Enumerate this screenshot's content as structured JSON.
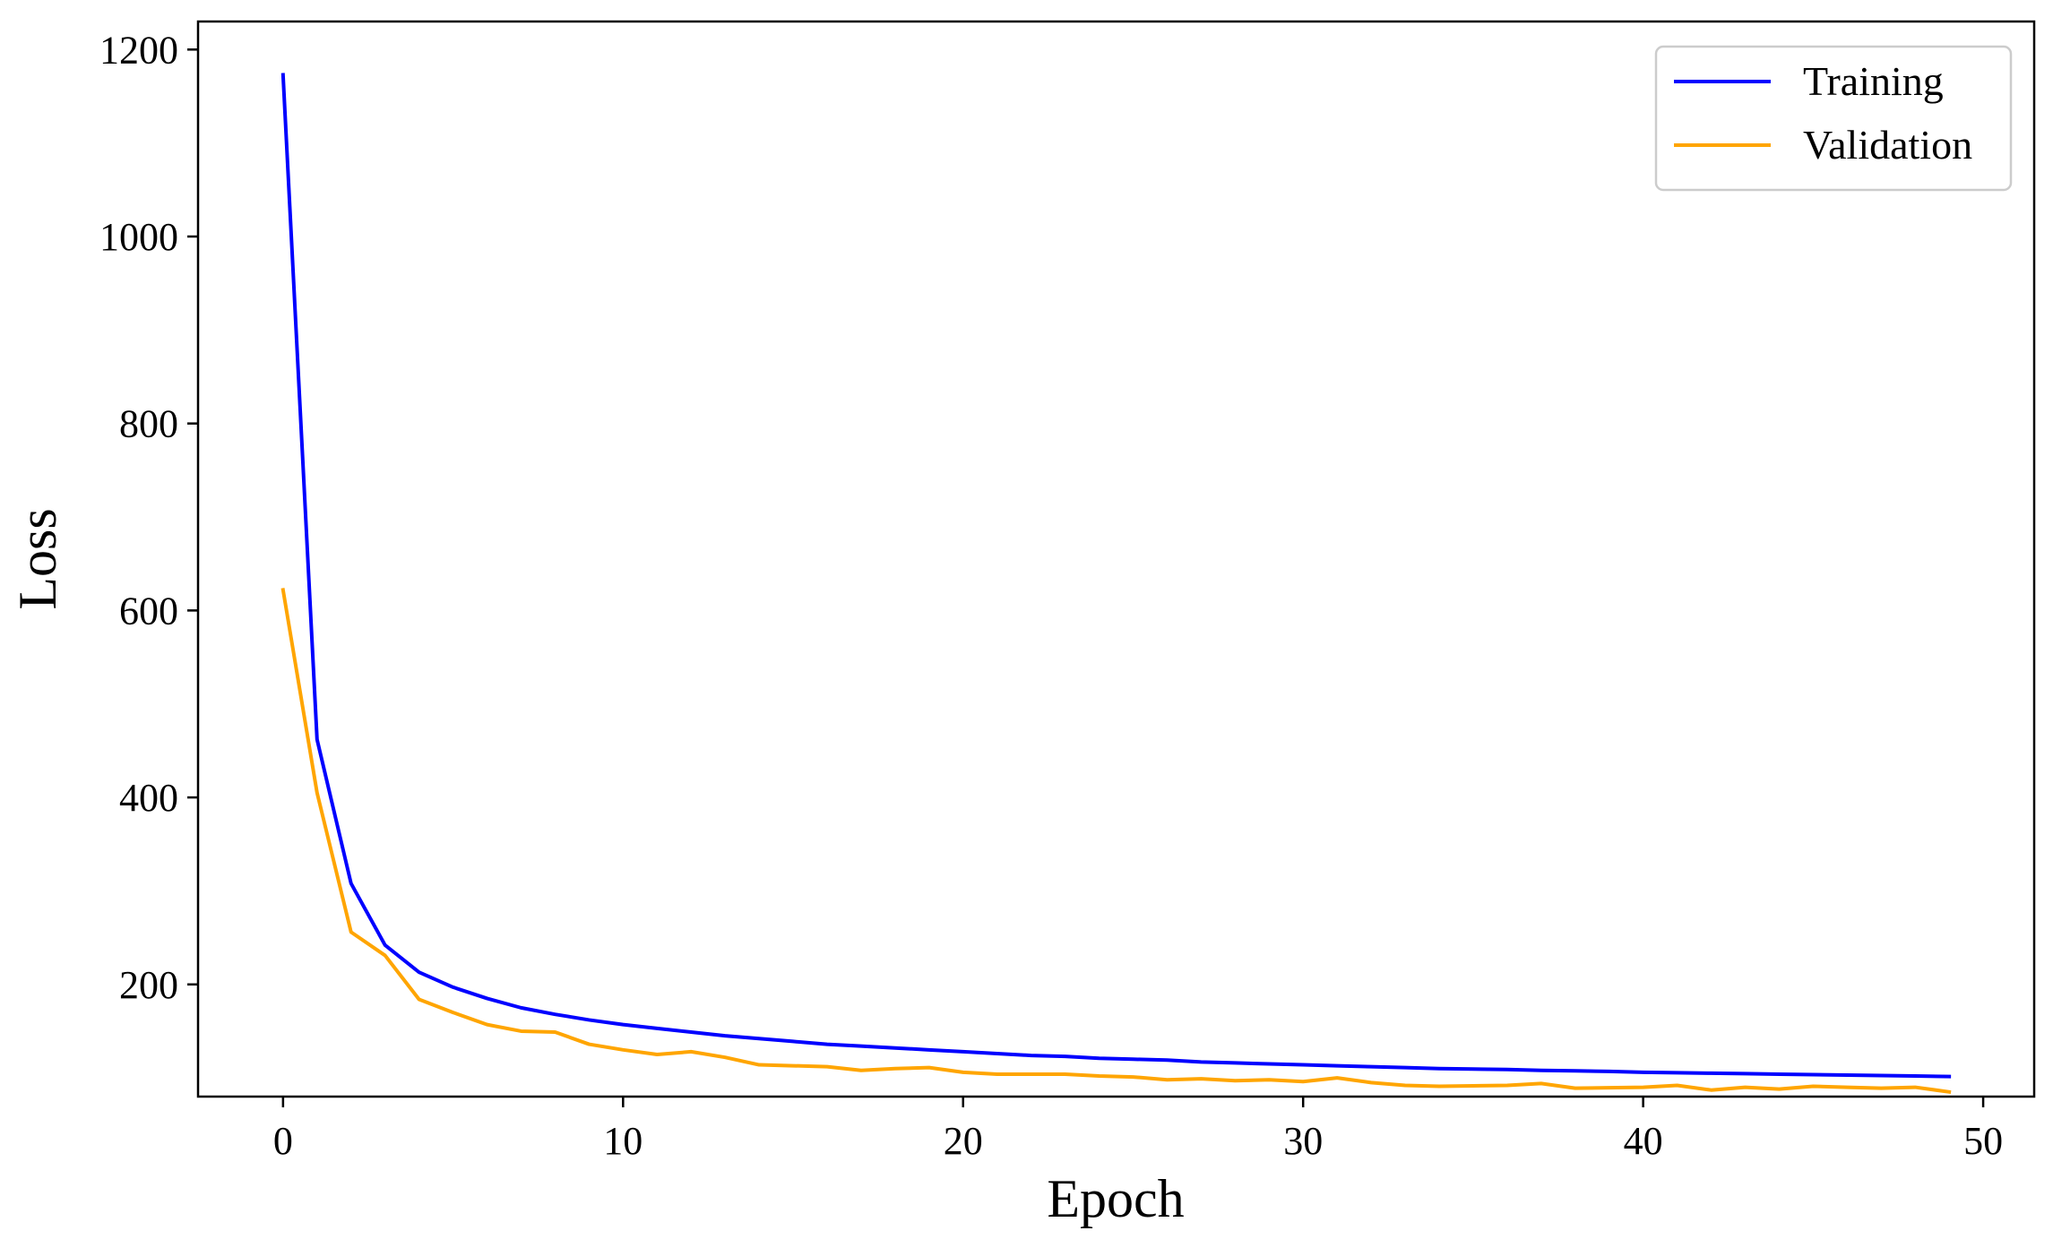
{
  "chart_data": {
    "type": "line",
    "title": "",
    "xlabel": "Epoch",
    "ylabel": "Loss",
    "xlim": [
      -2.5,
      51.5
    ],
    "ylim": [
      80,
      1230
    ],
    "xticks": [
      0,
      10,
      20,
      30,
      40,
      50
    ],
    "yticks": [
      200,
      400,
      600,
      800,
      1000,
      1200
    ],
    "xtick_labels": [
      "0",
      "10",
      "20",
      "30",
      "40",
      "50"
    ],
    "ytick_labels": [
      "200",
      "400",
      "600",
      "800",
      "1000",
      "1200"
    ],
    "grid": false,
    "legend_position": "top-right",
    "x": [
      0,
      1,
      2,
      3,
      4,
      5,
      6,
      7,
      8,
      9,
      10,
      11,
      12,
      13,
      14,
      15,
      16,
      17,
      18,
      19,
      20,
      21,
      22,
      23,
      24,
      25,
      26,
      27,
      28,
      29,
      30,
      31,
      32,
      33,
      34,
      35,
      36,
      37,
      38,
      39,
      40,
      41,
      42,
      43,
      44,
      45,
      46,
      47,
      48,
      49
    ],
    "series": [
      {
        "name": "Training",
        "color": "#0000ff",
        "values": [
          1173,
          462,
          308,
          242,
          213,
          197,
          185,
          175,
          168,
          162,
          157,
          153,
          149,
          145,
          142,
          139,
          136,
          134,
          132,
          130,
          128,
          126,
          124,
          123,
          121,
          120,
          119,
          117,
          116,
          115,
          114,
          113,
          112,
          111,
          110,
          109.5,
          109,
          108,
          107.5,
          107,
          106,
          105.5,
          105,
          104.5,
          104,
          103.5,
          103,
          102.5,
          102,
          101.5
        ]
      },
      {
        "name": "Validation",
        "color": "#ffa500",
        "values": [
          622,
          405,
          256,
          231,
          184,
          170,
          157,
          150,
          149,
          136,
          130,
          125,
          128,
          122,
          114,
          113,
          112,
          108,
          110,
          111,
          106,
          104,
          104,
          104,
          102,
          101,
          98,
          99,
          97,
          98,
          96,
          100,
          95,
          92,
          91,
          91.5,
          92,
          94,
          89,
          89.5,
          90,
          92,
          87,
          90,
          88,
          91,
          90,
          89,
          90,
          85
        ]
      }
    ]
  }
}
